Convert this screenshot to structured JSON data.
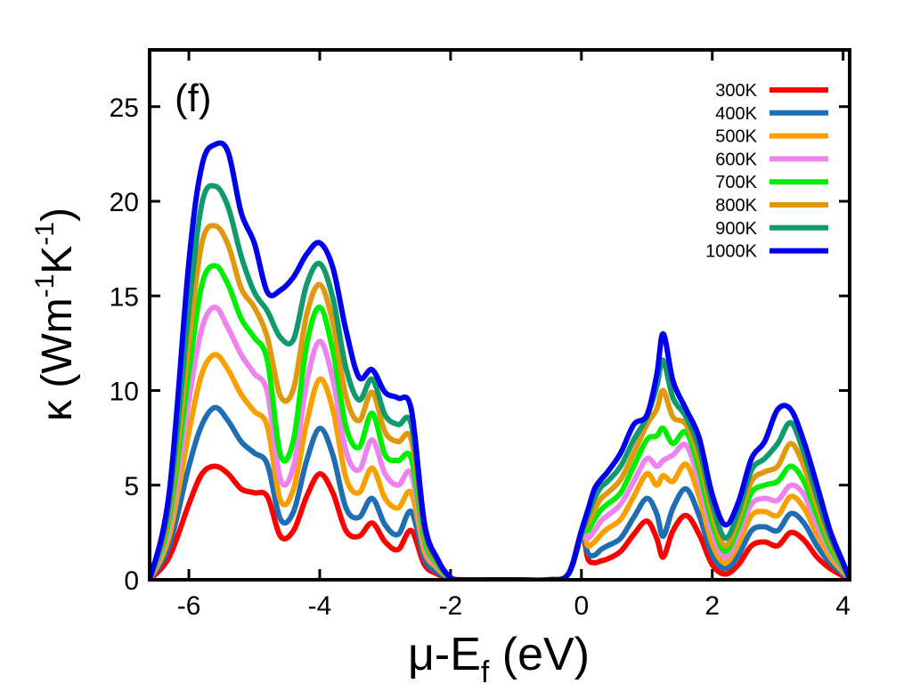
{
  "chart_data": {
    "type": "line",
    "panel_label": "(f)",
    "xlabel": {
      "main": "μ-E",
      "sub": "f",
      "unit": " (eV)"
    },
    "ylabel": {
      "sym": "κ (Wm",
      "e1": "-1",
      "mid": "K",
      "e2": "-1",
      "end": ")"
    },
    "xlim": [
      -6.6,
      4.1
    ],
    "ylim": [
      0,
      28
    ],
    "xticks": [
      -6,
      -4,
      -2,
      0,
      2,
      4
    ],
    "xtick_labels": [
      "-6",
      "-4",
      "-2",
      "0",
      "2",
      "4"
    ],
    "yticks": [
      0,
      5,
      10,
      15,
      20,
      25
    ],
    "ytick_labels": [
      "0",
      "5",
      "10",
      "15",
      "20",
      "25"
    ],
    "x": [
      -6.6,
      -6.3,
      -6.0,
      -5.8,
      -5.6,
      -5.4,
      -5.2,
      -5.0,
      -4.8,
      -4.6,
      -4.4,
      -4.2,
      -4.0,
      -3.8,
      -3.6,
      -3.4,
      -3.2,
      -3.0,
      -2.8,
      -2.6,
      -2.4,
      -2.2,
      -2.0,
      -1.8,
      -1.5,
      -1.0,
      -0.5,
      -0.2,
      0.0,
      0.1,
      0.2,
      0.3,
      0.4,
      0.6,
      0.8,
      1.0,
      1.15,
      1.25,
      1.4,
      1.6,
      1.8,
      2.0,
      2.2,
      2.4,
      2.6,
      2.8,
      3.0,
      3.2,
      3.4,
      3.6,
      3.8,
      4.0,
      4.1
    ],
    "series": [
      {
        "name": "300K",
        "color": "#ff0000",
        "values": [
          0.0,
          1.2,
          4.0,
          5.6,
          6.0,
          5.6,
          4.8,
          4.6,
          4.4,
          2.3,
          2.6,
          4.4,
          5.6,
          4.6,
          2.6,
          2.3,
          3.0,
          2.0,
          1.6,
          2.6,
          0.8,
          0.3,
          0.05,
          0.0,
          0.0,
          0.0,
          0.0,
          0.3,
          2.4,
          1.1,
          0.9,
          1.0,
          1.1,
          1.5,
          2.4,
          3.1,
          2.2,
          1.2,
          2.6,
          3.4,
          2.4,
          0.8,
          0.3,
          0.8,
          1.8,
          2.0,
          1.8,
          2.5,
          2.1,
          1.2,
          0.6,
          0.2,
          0.05
        ]
      },
      {
        "name": "400K",
        "color": "#1f6db3",
        "values": [
          0.0,
          1.8,
          6.0,
          8.2,
          9.1,
          8.4,
          7.3,
          6.7,
          6.1,
          3.2,
          3.6,
          6.3,
          8.0,
          6.6,
          3.8,
          3.3,
          4.3,
          2.9,
          2.4,
          3.6,
          1.1,
          0.4,
          0.05,
          0.0,
          0.0,
          0.0,
          0.0,
          0.3,
          2.4,
          1.4,
          1.3,
          1.6,
          1.8,
          2.2,
          3.3,
          4.3,
          3.5,
          2.3,
          3.8,
          4.8,
          3.4,
          1.3,
          0.6,
          1.3,
          2.6,
          2.8,
          2.6,
          3.5,
          3.0,
          1.8,
          0.9,
          0.3,
          0.05
        ]
      },
      {
        "name": "500K",
        "color": "#f7a000",
        "values": [
          0.0,
          2.3,
          7.8,
          10.9,
          11.9,
          11.1,
          9.8,
          8.9,
          8.1,
          4.2,
          4.8,
          8.3,
          10.6,
          9.0,
          5.4,
          4.6,
          5.9,
          4.3,
          3.8,
          4.6,
          1.5,
          0.6,
          0.06,
          0.0,
          0.0,
          0.0,
          0.0,
          0.3,
          2.4,
          1.8,
          2.0,
          2.4,
          2.7,
          3.2,
          4.4,
          5.6,
          5.0,
          5.5,
          5.2,
          6.1,
          4.4,
          1.9,
          0.9,
          1.9,
          3.4,
          3.6,
          3.4,
          4.4,
          3.8,
          2.4,
          1.2,
          0.4,
          0.05
        ]
      },
      {
        "name": "600K",
        "color": "#ee82ee",
        "values": [
          0.0,
          2.8,
          9.5,
          13.3,
          14.4,
          13.3,
          11.9,
          10.9,
          9.9,
          5.3,
          6.0,
          10.4,
          12.6,
          10.6,
          6.8,
          5.8,
          7.4,
          5.6,
          5.0,
          5.6,
          1.8,
          0.7,
          0.07,
          0.0,
          0.0,
          0.0,
          0.0,
          0.3,
          2.4,
          2.2,
          2.6,
          3.1,
          3.4,
          4.0,
          5.2,
          6.4,
          6.0,
          6.3,
          6.6,
          7.1,
          5.2,
          2.5,
          1.2,
          2.4,
          4.0,
          4.3,
          4.2,
          5.0,
          4.5,
          2.9,
          1.5,
          0.5,
          0.05
        ]
      },
      {
        "name": "700K",
        "color": "#00ee00",
        "values": [
          0.0,
          3.2,
          11.0,
          15.6,
          16.6,
          15.6,
          13.8,
          12.8,
          11.6,
          6.6,
          7.4,
          12.4,
          14.4,
          12.1,
          8.1,
          7.0,
          8.8,
          6.6,
          6.3,
          6.4,
          2.1,
          0.8,
          0.08,
          0.0,
          0.0,
          0.0,
          0.0,
          0.3,
          2.4,
          2.6,
          3.2,
          3.7,
          4.0,
          4.6,
          6.0,
          7.4,
          7.6,
          8.0,
          7.2,
          7.8,
          5.8,
          3.0,
          1.5,
          2.8,
          4.6,
          5.0,
          5.2,
          6.0,
          5.2,
          3.4,
          1.7,
          0.6,
          0.05
        ]
      },
      {
        "name": "800K",
        "color": "#e0990e",
        "values": [
          0.0,
          3.6,
          12.6,
          17.8,
          18.7,
          17.7,
          15.4,
          14.4,
          12.8,
          9.7,
          10.1,
          14.0,
          15.6,
          13.6,
          9.7,
          8.4,
          9.9,
          7.8,
          7.3,
          7.4,
          2.4,
          0.9,
          0.09,
          0.0,
          0.0,
          0.0,
          0.0,
          0.3,
          2.4,
          3.0,
          3.7,
          4.3,
          4.6,
          5.3,
          6.7,
          8.2,
          9.0,
          10.0,
          8.6,
          8.2,
          6.4,
          3.5,
          1.8,
          3.2,
          5.2,
          5.7,
          6.0,
          7.2,
          6.0,
          3.9,
          2.0,
          0.7,
          0.05
        ]
      },
      {
        "name": "900K",
        "color": "#109a6e",
        "values": [
          0.0,
          4.0,
          14.3,
          19.9,
          20.8,
          19.7,
          17.1,
          15.2,
          14.2,
          12.8,
          12.7,
          15.6,
          16.7,
          14.9,
          11.2,
          9.5,
          10.6,
          8.7,
          8.2,
          8.2,
          2.7,
          1.0,
          0.1,
          0.0,
          0.0,
          0.0,
          0.0,
          0.3,
          2.4,
          3.4,
          4.3,
          4.9,
          5.2,
          6.0,
          7.4,
          8.6,
          10.2,
          11.6,
          9.6,
          8.6,
          6.9,
          4.0,
          2.2,
          3.6,
          5.8,
          6.4,
          7.2,
          8.3,
          6.7,
          4.4,
          2.3,
          0.8,
          0.05
        ]
      },
      {
        "name": "1000K",
        "color": "#0000ee",
        "values": [
          0.0,
          4.6,
          16.8,
          21.9,
          23.0,
          22.6,
          19.4,
          17.8,
          15.2,
          15.3,
          16.0,
          17.2,
          17.8,
          16.5,
          13.2,
          10.7,
          11.1,
          9.9,
          9.6,
          9.0,
          3.0,
          1.1,
          0.12,
          0.0,
          0.0,
          0.0,
          0.0,
          0.3,
          2.6,
          3.7,
          4.8,
          5.3,
          5.7,
          6.7,
          8.2,
          8.7,
          10.8,
          13.0,
          10.5,
          9.0,
          7.5,
          4.5,
          2.9,
          4.1,
          6.4,
          7.3,
          9.0,
          9.0,
          7.3,
          5.0,
          2.6,
          0.9,
          0.05
        ]
      }
    ]
  }
}
